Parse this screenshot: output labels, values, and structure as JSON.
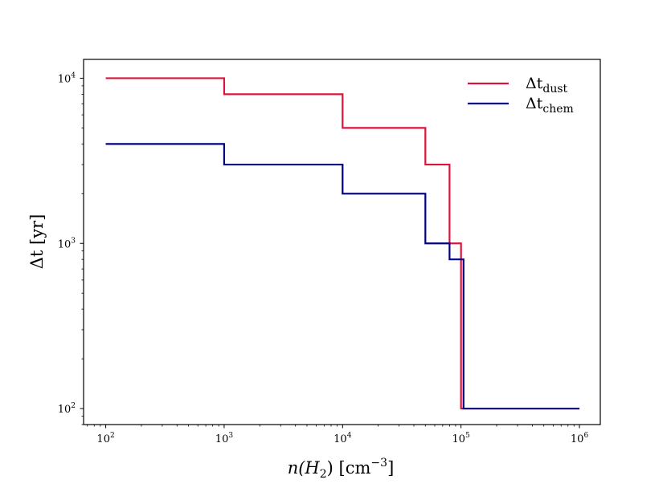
{
  "chart_data": {
    "type": "line",
    "step": true,
    "title": "",
    "xlabel": {
      "main": "n(H",
      "sub": "2",
      "tail": ") [cm",
      "sup": "−3",
      "end": "]"
    },
    "ylabel": "Δt [yr]",
    "xscale": "log",
    "yscale": "log",
    "xlim": [
      65,
      1500000
    ],
    "ylim": [
      80,
      13000
    ],
    "x_ticks": [
      {
        "value": 100,
        "base": "10",
        "exp": "2"
      },
      {
        "value": 1000,
        "base": "10",
        "exp": "3"
      },
      {
        "value": 10000,
        "base": "10",
        "exp": "4"
      },
      {
        "value": 100000,
        "base": "10",
        "exp": "5"
      },
      {
        "value": 1000000,
        "base": "10",
        "exp": "6"
      }
    ],
    "y_ticks": [
      {
        "value": 100,
        "base": "10",
        "exp": "2"
      },
      {
        "value": 1000,
        "base": "10",
        "exp": "3"
      },
      {
        "value": 10000,
        "base": "10",
        "exp": "4"
      }
    ],
    "legend_position": "top-right",
    "series": [
      {
        "name": "Δt_dust",
        "label_main": "Δt",
        "label_sub": "dust",
        "color": "#dc143c",
        "x": [
          100,
          1000,
          1000,
          10000,
          10000,
          50000,
          50000,
          80000,
          80000,
          100000,
          100000,
          1000000
        ],
        "y": [
          10000,
          10000,
          8000,
          8000,
          5000,
          5000,
          3000,
          3000,
          1000,
          1000,
          100,
          100
        ]
      },
      {
        "name": "Δt_chem",
        "label_main": "Δt",
        "label_sub": "chem",
        "color": "#000080",
        "x": [
          100,
          1000,
          1000,
          10000,
          10000,
          50000,
          50000,
          80000,
          80000,
          105000,
          105000,
          1000000
        ],
        "y": [
          4000,
          4000,
          3000,
          3000,
          2000,
          2000,
          1000,
          1000,
          800,
          800,
          100,
          100
        ]
      }
    ]
  }
}
